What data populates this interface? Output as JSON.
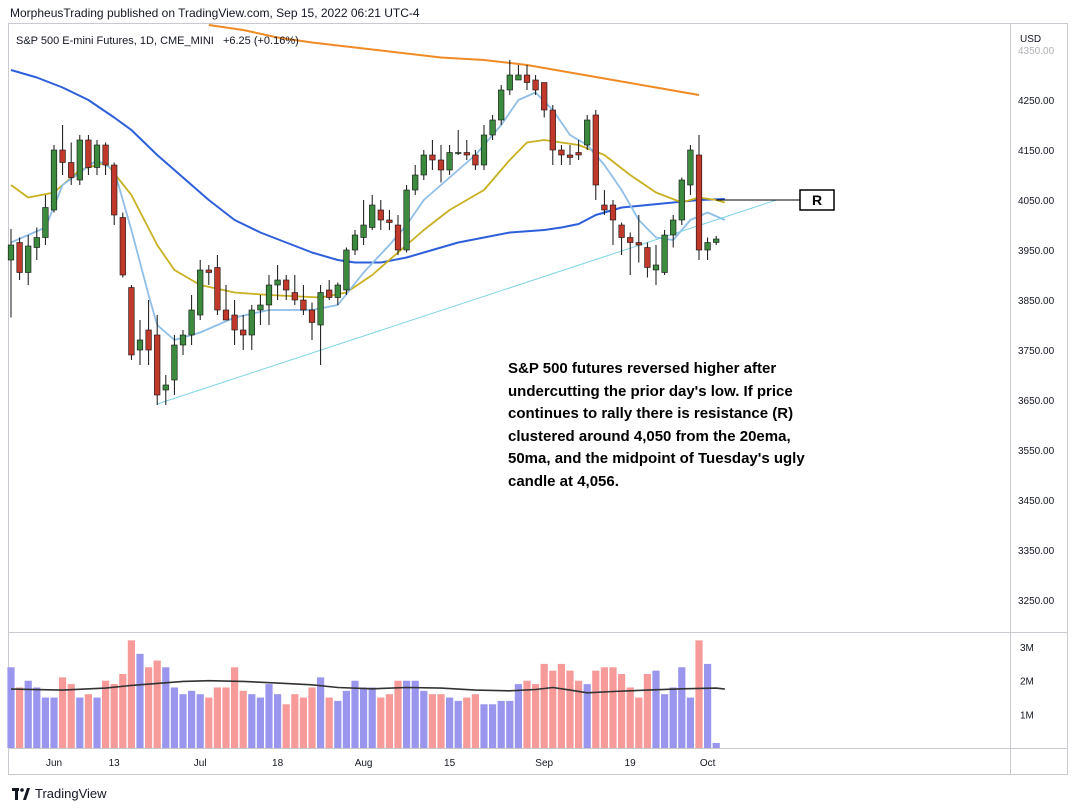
{
  "header": {
    "publish_line": "MorpheusTrading published on TradingView.com, Sep 15, 2022 06:21 UTC-4"
  },
  "symbol": {
    "name": "S&P 500 E-mini Futures, 1D, CME_MINI",
    "change": "+6.25 (+0.16%)"
  },
  "annotation": {
    "text": "S&P 500 futures reversed higher after undercutting the prior day's low. If price continues to rally there is resistance (R) clustered around 4,050 from the 20ema, 50ma, and the midpoint of Tuesday's ugly candle at 4,056."
  },
  "footer": {
    "brand": "TradingView"
  },
  "colors": {
    "up_candle": "#3b8a3e",
    "down_candle": "#c0392b",
    "ema_fast": "#8fbfe8",
    "ema_20": "#c9b021",
    "ma_50": "#2d5fdb",
    "ma_200": "#f08a24",
    "trendline": "#7fd3e6",
    "vol_up": "#9a96ee",
    "vol_down": "#f79a9a",
    "vol_ma": "#333333"
  },
  "chart_data": {
    "type": "candlestick",
    "title": "S&P 500 E-mini Futures, 1D, CME_MINI",
    "currency_label": "USD",
    "ylim": [
      3150,
      4375
    ],
    "y_ticks": [
      "4350.00",
      "4250.00",
      "4150.00",
      "4050.00",
      "3950.00",
      "3850.00",
      "3750.00",
      "3650.00",
      "3550.00",
      "3450.00",
      "3350.00",
      "3250.00"
    ],
    "x_ticks": [
      {
        "label": "Jun",
        "index": 5
      },
      {
        "label": "13",
        "index": 12
      },
      {
        "label": "Jul",
        "index": 22
      },
      {
        "label": "18",
        "index": 31
      },
      {
        "label": "Aug",
        "index": 41
      },
      {
        "label": "15",
        "index": 51
      },
      {
        "label": "Sep",
        "index": 62
      },
      {
        "label": "19",
        "index": 72
      },
      {
        "label": "Oct",
        "index": 81
      }
    ],
    "ohlc": [
      [
        3930,
        3992,
        3815,
        3960
      ],
      [
        3965,
        3975,
        3890,
        3905
      ],
      [
        3905,
        3980,
        3880,
        3958
      ],
      [
        3955,
        3995,
        3930,
        3975
      ],
      [
        3975,
        4060,
        3960,
        4035
      ],
      [
        4030,
        4160,
        4025,
        4150
      ],
      [
        4150,
        4200,
        4100,
        4125
      ],
      [
        4125,
        4165,
        4080,
        4095
      ],
      [
        4090,
        4180,
        4080,
        4170
      ],
      [
        4170,
        4180,
        4100,
        4115
      ],
      [
        4115,
        4170,
        4100,
        4160
      ],
      [
        4160,
        4165,
        4100,
        4120
      ],
      [
        4120,
        4125,
        4000,
        4020
      ],
      [
        4015,
        4025,
        3895,
        3900
      ],
      [
        3875,
        3880,
        3730,
        3740
      ],
      [
        3750,
        3810,
        3720,
        3770
      ],
      [
        3790,
        3850,
        3720,
        3750
      ],
      [
        3780,
        3820,
        3640,
        3660
      ],
      [
        3670,
        3700,
        3640,
        3680
      ],
      [
        3690,
        3780,
        3660,
        3760
      ],
      [
        3760,
        3790,
        3740,
        3780
      ],
      [
        3780,
        3860,
        3760,
        3830
      ],
      [
        3820,
        3930,
        3810,
        3910
      ],
      [
        3910,
        3920,
        3880,
        3905
      ],
      [
        3915,
        3940,
        3820,
        3830
      ],
      [
        3830,
        3880,
        3810,
        3810
      ],
      [
        3820,
        3850,
        3760,
        3790
      ],
      [
        3790,
        3820,
        3750,
        3780
      ],
      [
        3780,
        3840,
        3750,
        3830
      ],
      [
        3830,
        3860,
        3800,
        3840
      ],
      [
        3840,
        3900,
        3800,
        3880
      ],
      [
        3880,
        3920,
        3850,
        3890
      ],
      [
        3890,
        3900,
        3850,
        3870
      ],
      [
        3865,
        3900,
        3840,
        3850
      ],
      [
        3850,
        3880,
        3820,
        3830
      ],
      [
        3830,
        3845,
        3770,
        3805
      ],
      [
        3800,
        3880,
        3720,
        3865
      ],
      [
        3870,
        3890,
        3850,
        3855
      ],
      [
        3855,
        3885,
        3840,
        3880
      ],
      [
        3870,
        3955,
        3860,
        3950
      ],
      [
        3950,
        3990,
        3940,
        3980
      ],
      [
        3975,
        4050,
        3960,
        4000
      ],
      [
        3995,
        4060,
        3990,
        4040
      ],
      [
        4030,
        4050,
        3990,
        4010
      ],
      [
        4010,
        4030,
        3990,
        4005
      ],
      [
        4000,
        4020,
        3940,
        3950
      ],
      [
        3950,
        4080,
        3945,
        4070
      ],
      [
        4070,
        4120,
        4060,
        4100
      ],
      [
        4100,
        4150,
        4090,
        4140
      ],
      [
        4140,
        4170,
        4110,
        4130
      ],
      [
        4130,
        4160,
        4085,
        4110
      ],
      [
        4110,
        4160,
        4100,
        4145
      ],
      [
        4145,
        4190,
        4140,
        4145
      ],
      [
        4145,
        4170,
        4130,
        4140
      ],
      [
        4140,
        4150,
        4110,
        4120
      ],
      [
        4120,
        4200,
        4110,
        4180
      ],
      [
        4180,
        4220,
        4170,
        4210
      ],
      [
        4210,
        4280,
        4200,
        4270
      ],
      [
        4270,
        4330,
        4260,
        4300
      ],
      [
        4290,
        4320,
        4290,
        4300
      ],
      [
        4300,
        4320,
        4270,
        4285
      ],
      [
        4290,
        4300,
        4260,
        4270
      ],
      [
        4285,
        4280,
        4215,
        4230
      ],
      [
        4230,
        4240,
        4120,
        4150
      ],
      [
        4150,
        4160,
        4120,
        4140
      ],
      [
        4140,
        4160,
        4120,
        4135
      ],
      [
        4145,
        4170,
        4130,
        4140
      ],
      [
        4160,
        4220,
        4150,
        4210
      ],
      [
        4220,
        4230,
        4050,
        4080
      ],
      [
        4040,
        4070,
        4020,
        4030
      ],
      [
        4040,
        4050,
        3960,
        4010
      ],
      [
        4000,
        4005,
        3940,
        3975
      ],
      [
        3975,
        3985,
        3900,
        3965
      ],
      [
        3965,
        4020,
        3925,
        3960
      ],
      [
        3955,
        3965,
        3895,
        3915
      ],
      [
        3910,
        3960,
        3880,
        3920
      ],
      [
        3905,
        3990,
        3900,
        3980
      ],
      [
        3980,
        4020,
        3955,
        4010
      ],
      [
        4010,
        4095,
        4000,
        4090
      ],
      [
        4080,
        4160,
        4060,
        4150
      ],
      [
        4140,
        4180,
        3930,
        3950
      ],
      [
        3950,
        3975,
        3930,
        3965
      ],
      [
        3965,
        3978,
        3960,
        3972
      ]
    ],
    "ema_fast": [
      [
        0,
        3965
      ],
      [
        4,
        3995
      ],
      [
        6,
        4080
      ],
      [
        10,
        4130
      ],
      [
        12,
        4110
      ],
      [
        14,
        3990
      ],
      [
        16,
        3860
      ],
      [
        17,
        3800
      ],
      [
        19,
        3770
      ],
      [
        22,
        3785
      ],
      [
        26,
        3815
      ],
      [
        30,
        3830
      ],
      [
        35,
        3830
      ],
      [
        38,
        3840
      ],
      [
        41,
        3905
      ],
      [
        44,
        3960
      ],
      [
        46,
        4000
      ],
      [
        48,
        4050
      ],
      [
        51,
        4095
      ],
      [
        54,
        4140
      ],
      [
        57,
        4200
      ],
      [
        59,
        4250
      ],
      [
        61,
        4265
      ],
      [
        63,
        4230
      ],
      [
        65,
        4180
      ],
      [
        67,
        4160
      ],
      [
        69,
        4120
      ],
      [
        71,
        4070
      ],
      [
        73,
        4010
      ],
      [
        75,
        3975
      ],
      [
        77,
        3970
      ],
      [
        79,
        4010
      ],
      [
        81,
        4025
      ],
      [
        83,
        4010
      ]
    ],
    "ema_20": [
      [
        0,
        4080
      ],
      [
        2,
        4055
      ],
      [
        5,
        4065
      ],
      [
        8,
        4110
      ],
      [
        11,
        4125
      ],
      [
        14,
        4060
      ],
      [
        17,
        3960
      ],
      [
        19,
        3910
      ],
      [
        22,
        3880
      ],
      [
        26,
        3865
      ],
      [
        30,
        3860
      ],
      [
        36,
        3855
      ],
      [
        39,
        3865
      ],
      [
        42,
        3900
      ],
      [
        45,
        3945
      ],
      [
        48,
        3990
      ],
      [
        51,
        4030
      ],
      [
        55,
        4070
      ],
      [
        58,
        4130
      ],
      [
        60,
        4165
      ],
      [
        62,
        4170
      ],
      [
        64,
        4165
      ],
      [
        66,
        4160
      ],
      [
        69,
        4140
      ],
      [
        72,
        4100
      ],
      [
        75,
        4065
      ],
      [
        78,
        4045
      ],
      [
        80,
        4055
      ],
      [
        82,
        4050
      ],
      [
        83,
        4045
      ]
    ],
    "ma_50": [
      [
        0,
        4310
      ],
      [
        3,
        4295
      ],
      [
        6,
        4275
      ],
      [
        9,
        4250
      ],
      [
        12,
        4215
      ],
      [
        14,
        4190
      ],
      [
        17,
        4140
      ],
      [
        20,
        4095
      ],
      [
        23,
        4050
      ],
      [
        26,
        4010
      ],
      [
        29,
        3985
      ],
      [
        32,
        3965
      ],
      [
        35,
        3945
      ],
      [
        38,
        3930
      ],
      [
        40,
        3925
      ],
      [
        43,
        3925
      ],
      [
        46,
        3935
      ],
      [
        49,
        3950
      ],
      [
        52,
        3965
      ],
      [
        55,
        3975
      ],
      [
        58,
        3985
      ],
      [
        62,
        3990
      ],
      [
        64,
        3995
      ],
      [
        66,
        4002
      ],
      [
        68,
        4020
      ],
      [
        71,
        4035
      ],
      [
        74,
        4040
      ],
      [
        77,
        4045
      ],
      [
        80,
        4050
      ],
      [
        83,
        4052
      ]
    ],
    "ma_200": [
      [
        23,
        4400
      ],
      [
        27,
        4390
      ],
      [
        31,
        4375
      ],
      [
        35,
        4365
      ],
      [
        40,
        4355
      ],
      [
        45,
        4345
      ],
      [
        50,
        4335
      ],
      [
        55,
        4330
      ],
      [
        60,
        4320
      ],
      [
        65,
        4305
      ],
      [
        70,
        4290
      ],
      [
        75,
        4275
      ],
      [
        80,
        4260
      ]
    ],
    "trendline": {
      "from": [
        17,
        3642
      ],
      "to": [
        89,
        4050
      ]
    },
    "resistance_marker": {
      "label": "R",
      "price": 4050
    },
    "volume": {
      "y_ticks": [
        "3M",
        "2M",
        "1M"
      ],
      "ylim": [
        0,
        3.3
      ],
      "values": [
        2.4,
        1.8,
        2.0,
        1.8,
        1.5,
        1.5,
        2.1,
        1.9,
        1.5,
        1.6,
        1.5,
        2.0,
        1.9,
        2.2,
        3.2,
        2.8,
        2.4,
        2.6,
        2.4,
        1.8,
        1.6,
        1.7,
        1.6,
        1.5,
        1.8,
        1.8,
        2.4,
        1.7,
        1.6,
        1.5,
        1.9,
        1.6,
        1.3,
        1.6,
        1.5,
        1.8,
        2.1,
        1.5,
        1.4,
        1.7,
        2.0,
        1.8,
        1.8,
        1.5,
        1.6,
        2.0,
        2.0,
        2.0,
        1.7,
        1.6,
        1.6,
        1.5,
        1.4,
        1.5,
        1.6,
        1.3,
        1.3,
        1.4,
        1.4,
        1.9,
        2.0,
        1.9,
        2.5,
        2.3,
        2.5,
        2.3,
        2.0,
        1.9,
        2.3,
        2.4,
        2.4,
        2.2,
        1.8,
        1.5,
        2.2,
        2.3,
        1.6,
        1.8,
        2.4,
        1.5,
        3.2,
        2.5,
        0.15
      ],
      "ma": [
        [
          0,
          1.75
        ],
        [
          6,
          1.72
        ],
        [
          11,
          1.78
        ],
        [
          14,
          1.86
        ],
        [
          17,
          1.92
        ],
        [
          20,
          1.98
        ],
        [
          23,
          2.0
        ],
        [
          27,
          1.98
        ],
        [
          31,
          1.93
        ],
        [
          35,
          1.88
        ],
        [
          38,
          1.8
        ],
        [
          42,
          1.76
        ],
        [
          46,
          1.8
        ],
        [
          50,
          1.78
        ],
        [
          54,
          1.72
        ],
        [
          58,
          1.7
        ],
        [
          61,
          1.74
        ],
        [
          63,
          1.8
        ],
        [
          65,
          1.72
        ],
        [
          67,
          1.64
        ],
        [
          70,
          1.68
        ],
        [
          74,
          1.72
        ],
        [
          78,
          1.76
        ],
        [
          82,
          1.78
        ],
        [
          83,
          1.75
        ]
      ]
    }
  }
}
